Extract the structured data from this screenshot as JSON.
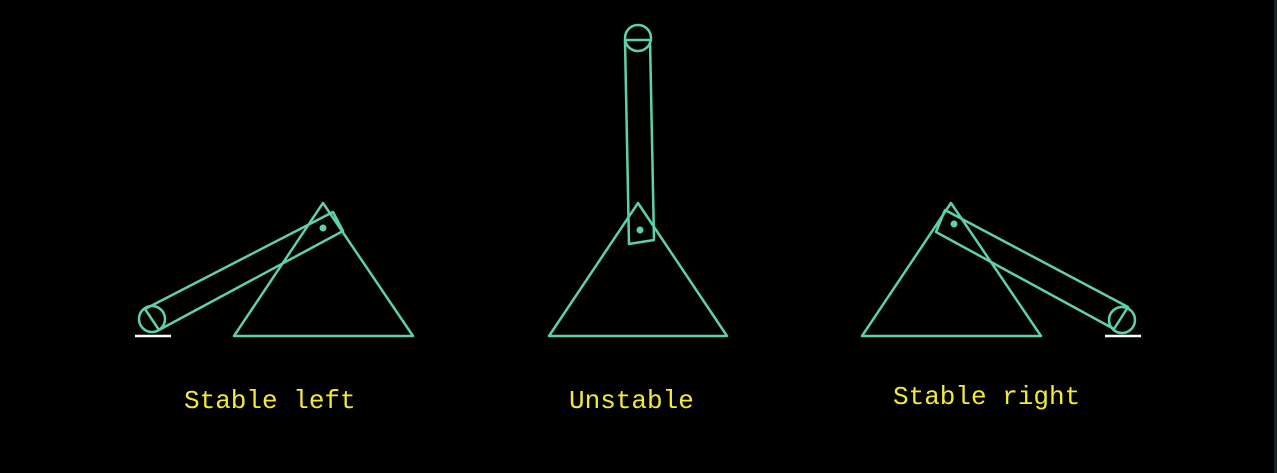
{
  "colors": {
    "background": "#000000",
    "stroke": "#5fd0a7",
    "label": "#f2ea3a",
    "ground": "#ffffff"
  },
  "diagrams": [
    {
      "id": "left",
      "caption": "Stable left",
      "icon": "lever-resting-left-icon"
    },
    {
      "id": "center",
      "caption": "Unstable",
      "icon": "lever-balanced-upright-icon"
    },
    {
      "id": "right",
      "caption": "Stable right",
      "icon": "lever-resting-right-icon"
    }
  ]
}
